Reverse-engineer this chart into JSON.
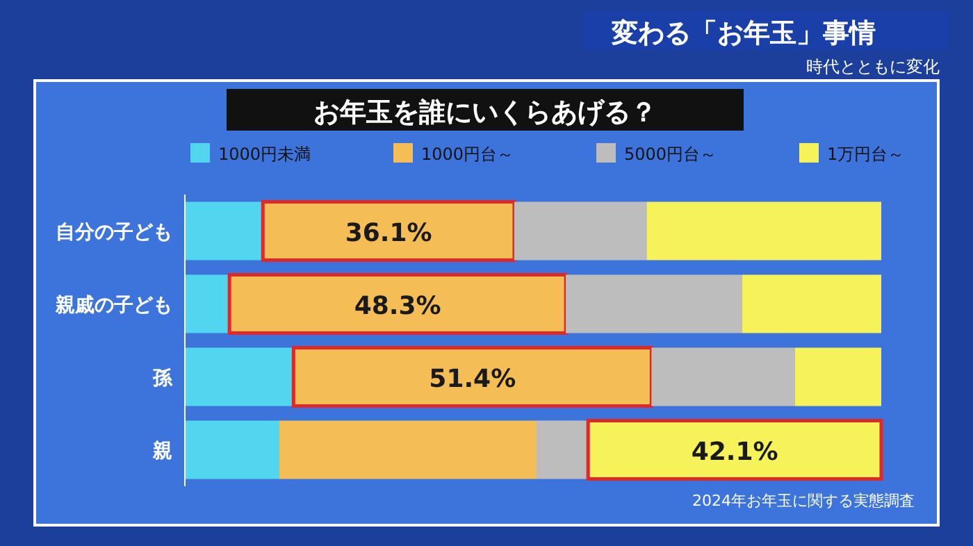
{
  "chart_data": {
    "type": "bar",
    "orientation": "horizontal",
    "stacked": true,
    "title": "お年玉を誰にいくらあげる？",
    "annotations": [
      "変わる「お年玉」事情",
      "時代とともに変化",
      "2024年お年玉に関する実態調査"
    ],
    "categories": [
      "自分の子ども",
      "親戚の子ども",
      "孫",
      "親"
    ],
    "series": [
      {
        "name": "1000円未満",
        "color": "#52d6f0",
        "values": [
          11.2,
          6.4,
          15.6,
          13.5
        ]
      },
      {
        "name": "1000円台～",
        "color": "#f5bd55",
        "values": [
          36.1,
          48.3,
          51.4,
          37.0
        ],
        "value_labels": [
          "36.1%",
          "48.3%",
          "51.4%",
          null
        ]
      },
      {
        "name": "5000円台～",
        "color": "#bdbdbd",
        "values": [
          19.0,
          25.3,
          20.6,
          7.4
        ]
      },
      {
        "name": "1万円台～",
        "color": "#f5f25a",
        "values": [
          33.7,
          20.0,
          12.4,
          42.1
        ],
        "value_labels": [
          null,
          null,
          null,
          "42.1%"
        ]
      }
    ],
    "xlim": [
      0,
      100
    ],
    "tick_labels": "y",
    "legend": "top"
  }
}
